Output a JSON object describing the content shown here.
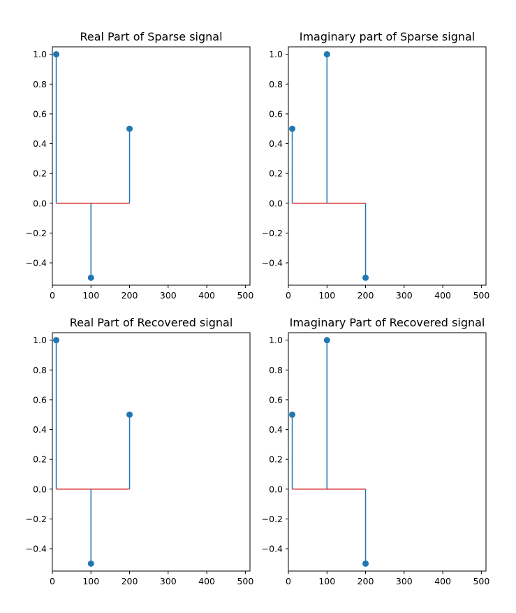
{
  "chart_data": [
    {
      "type": "stem",
      "title": "Real Part of Sparse signal",
      "xlim": [
        0,
        512
      ],
      "ylim": [
        -0.55,
        1.05
      ],
      "xticks": [
        0,
        100,
        200,
        300,
        400,
        500
      ],
      "yticks": [
        -0.4,
        -0.2,
        0.0,
        0.2,
        0.4,
        0.6,
        0.8,
        1.0
      ],
      "ytick_labels": [
        "−0.4",
        "−0.2",
        "0.0",
        "0.2",
        "0.4",
        "0.6",
        "0.8",
        "1.0"
      ],
      "points": [
        {
          "x": 10,
          "y": 1.0
        },
        {
          "x": 100,
          "y": -0.5
        },
        {
          "x": 200,
          "y": 0.5
        }
      ],
      "baseline": {
        "y": 0,
        "x_from": 10,
        "x_to": 200
      },
      "grid": false
    },
    {
      "type": "stem",
      "title": "Imaginary part of Sparse signal",
      "xlim": [
        0,
        512
      ],
      "ylim": [
        -0.55,
        1.05
      ],
      "xticks": [
        0,
        100,
        200,
        300,
        400,
        500
      ],
      "yticks": [
        -0.4,
        -0.2,
        0.0,
        0.2,
        0.4,
        0.6,
        0.8,
        1.0
      ],
      "ytick_labels": [
        "−0.4",
        "−0.2",
        "0.0",
        "0.2",
        "0.4",
        "0.6",
        "0.8",
        "1.0"
      ],
      "points": [
        {
          "x": 10,
          "y": 0.5
        },
        {
          "x": 100,
          "y": 1.0
        },
        {
          "x": 200,
          "y": -0.5
        }
      ],
      "baseline": {
        "y": 0,
        "x_from": 10,
        "x_to": 200
      },
      "grid": false
    },
    {
      "type": "stem",
      "title": "Real Part of Recovered signal",
      "xlim": [
        0,
        512
      ],
      "ylim": [
        -0.55,
        1.05
      ],
      "xticks": [
        0,
        100,
        200,
        300,
        400,
        500
      ],
      "yticks": [
        -0.4,
        -0.2,
        0.0,
        0.2,
        0.4,
        0.6,
        0.8,
        1.0
      ],
      "ytick_labels": [
        "−0.4",
        "−0.2",
        "0.0",
        "0.2",
        "0.4",
        "0.6",
        "0.8",
        "1.0"
      ],
      "points": [
        {
          "x": 10,
          "y": 1.0
        },
        {
          "x": 100,
          "y": -0.5
        },
        {
          "x": 200,
          "y": 0.5
        }
      ],
      "baseline": {
        "y": 0,
        "x_from": 10,
        "x_to": 200
      },
      "grid": false
    },
    {
      "type": "stem",
      "title": "Imaginary Part of Recovered signal",
      "xlim": [
        0,
        512
      ],
      "ylim": [
        -0.55,
        1.05
      ],
      "xticks": [
        0,
        100,
        200,
        300,
        400,
        500
      ],
      "yticks": [
        -0.4,
        -0.2,
        0.0,
        0.2,
        0.4,
        0.6,
        0.8,
        1.0
      ],
      "ytick_labels": [
        "−0.4",
        "−0.2",
        "0.0",
        "0.2",
        "0.4",
        "0.6",
        "0.8",
        "1.0"
      ],
      "points": [
        {
          "x": 10,
          "y": 0.5
        },
        {
          "x": 100,
          "y": 1.0
        },
        {
          "x": 200,
          "y": -0.5
        }
      ],
      "baseline": {
        "y": 0,
        "x_from": 10,
        "x_to": 200
      },
      "grid": false
    }
  ],
  "colors": {
    "stem": "#1f77b4",
    "baseline": "#d62728",
    "axes": "#000000"
  }
}
